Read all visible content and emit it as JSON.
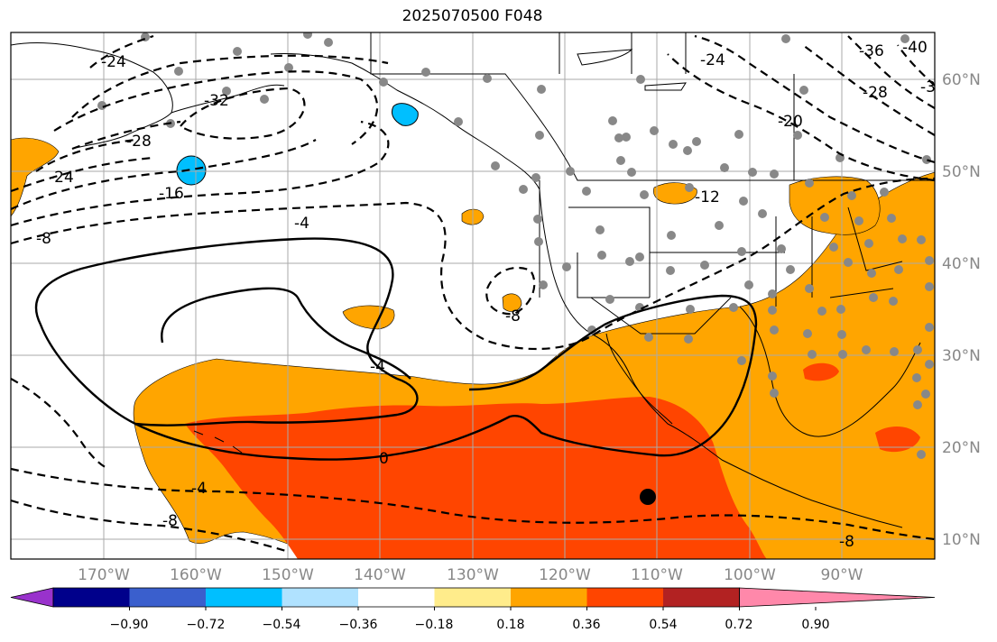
{
  "title": "2025070500 F048",
  "chart_data": {
    "type": "map",
    "lon_ticks": [
      "170°W",
      "160°W",
      "150°W",
      "140°W",
      "130°W",
      "120°W",
      "110°W",
      "100°W",
      "90°W"
    ],
    "lat_ticks": [
      "60°N",
      "50°N",
      "40°N",
      "30°N",
      "20°N",
      "10°N"
    ],
    "colorbar": {
      "ticks": [
        "−0.90",
        "−0.72",
        "−0.54",
        "−0.36",
        "−0.18",
        "0.18",
        "0.36",
        "0.54",
        "0.72",
        "0.90"
      ],
      "colors": [
        "#9932cc",
        "#00008b",
        "#3a5fcd",
        "#00bfff",
        "#b0e2ff",
        "#ffffff",
        "#ffec8b",
        "#ffa500",
        "#ff4500",
        "#b22222",
        "#ff88aa"
      ]
    },
    "contour_labels": [
      "-24",
      "-32",
      "-28",
      "-24",
      "-16",
      "-8",
      "-4",
      "-24",
      "-36",
      "-40",
      "-28",
      "-3",
      "-20",
      "-12",
      "-8",
      "-4",
      "-4",
      "-8",
      "-8",
      "0"
    ]
  }
}
